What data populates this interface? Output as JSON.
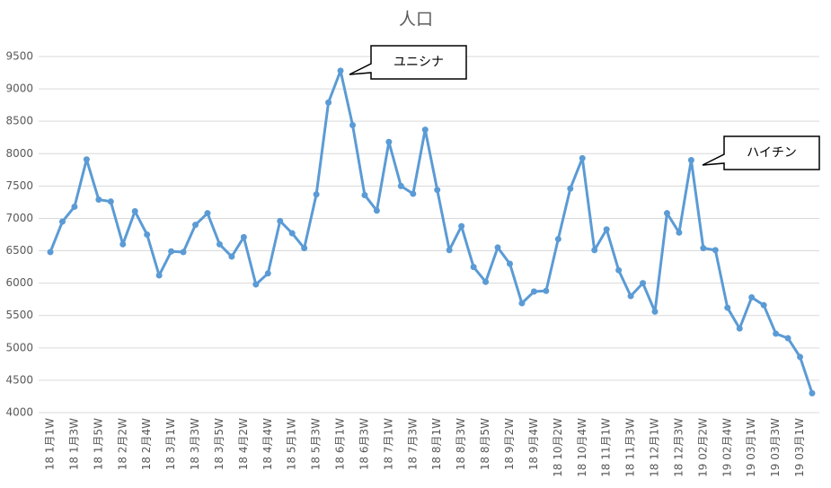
{
  "chart_data": {
    "type": "line",
    "title": "人口",
    "categories": [
      "18 1月1W",
      null,
      "18 1月3W",
      null,
      "18 1月5W",
      null,
      "18 2月2W",
      null,
      "18 2月4W",
      null,
      "18 3月1W",
      null,
      "18 3月3W",
      null,
      "18 3月5W",
      null,
      "18 4月2W",
      null,
      "18 4月4W",
      null,
      "18 5月1W",
      null,
      "18 5月3W",
      null,
      "18 6月1W",
      null,
      "18 6月3W",
      null,
      "18 7月1W",
      null,
      "18 7月3W",
      null,
      "18 8月1W",
      null,
      "18 8月3W",
      null,
      "18 8月5W",
      null,
      "18 9月2W",
      null,
      "18 9月4W",
      null,
      "18 10月2W",
      null,
      "18 10月4W",
      null,
      "18 11月1W",
      null,
      "18 11月3W",
      null,
      "18 12月1W",
      null,
      "18 12月3W",
      null,
      "19 02月2W",
      null,
      "19 02月4W",
      null,
      "19 03月1W",
      null,
      "19 03月3W",
      null,
      "19 03月1W",
      null
    ],
    "values": [
      6480,
      6950,
      7180,
      7910,
      7290,
      7260,
      6600,
      7110,
      6750,
      6120,
      6490,
      6480,
      6900,
      7080,
      6600,
      6410,
      6710,
      5980,
      6150,
      6960,
      6770,
      6540,
      7370,
      8790,
      9280,
      8440,
      7360,
      7120,
      8180,
      7500,
      7380,
      8370,
      7440,
      6510,
      6880,
      6250,
      6020,
      6550,
      6300,
      5690,
      5870,
      5880,
      6680,
      7460,
      7930,
      6510,
      6830,
      6200,
      5800,
      6000,
      5560,
      7080,
      6780,
      7900,
      6540,
      6510,
      5620,
      5300,
      5780,
      5660,
      5220,
      5150,
      4860,
      4300
    ],
    "color": "#5b9bd5",
    "ylim": [
      4000,
      9500
    ],
    "yticks": [
      4000,
      4500,
      5000,
      5500,
      6000,
      6500,
      7000,
      7500,
      8000,
      8500,
      9000,
      9500
    ],
    "grid": true,
    "annotations": [
      "ユニシナ",
      "ハイチン"
    ]
  }
}
